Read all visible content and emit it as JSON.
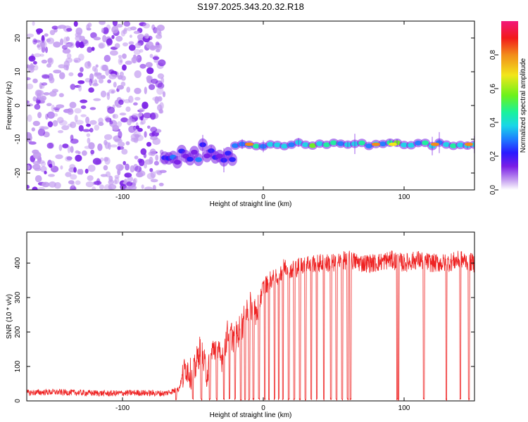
{
  "figure_title": "S197.2025.343.20.32.R18",
  "colors": {
    "snr_line": "#ee2222",
    "axis": "#000000"
  },
  "chart_data": [
    {
      "type": "heatmap",
      "title": "S197.2025.343.20.32.R18",
      "xlabel": "Height of straight line (km)",
      "ylabel": "Frequency (Hz)",
      "xlim": [
        -168,
        150
      ],
      "ylim": [
        -25,
        25
      ],
      "x_ticks": [
        -100,
        0,
        100
      ],
      "x_tick_labels": [
        "-100",
        "0",
        "100"
      ],
      "y_ticks": [
        -20,
        -10,
        0,
        10,
        20
      ],
      "y_tick_labels": [
        "-20",
        "-10",
        "0",
        "10",
        "20"
      ],
      "colorbar": {
        "label": "Normalized spectral amplitude",
        "range": [
          0,
          1
        ],
        "ticks": [
          0,
          0.2,
          0.4,
          0.6,
          0.8
        ],
        "tick_labels": [
          "0.0",
          "0.2",
          "0.4",
          "0.6",
          "0.8"
        ],
        "colormap": [
          "#ffffff",
          "#c39cf0",
          "#7a1ee6",
          "#2a1aff",
          "#1d7dff",
          "#19d6e8",
          "#19f29c",
          "#6df21a",
          "#f2e61a",
          "#f28c1a",
          "#f21a1a",
          "#f2187a"
        ]
      },
      "regions": [
        {
          "name": "noise",
          "x_range": [
            -168,
            -70
          ],
          "f_range": [
            -25,
            25
          ],
          "amplitude": 0.1
        },
        {
          "name": "signal-onset",
          "x_range": [
            -70,
            -20
          ],
          "f_center": -14,
          "amplitude": 0.3
        },
        {
          "name": "signal",
          "x_range": [
            -20,
            150
          ],
          "f_center": -11.5,
          "amplitude": 0.55
        }
      ],
      "hot_spots": [
        {
          "x": -10,
          "f": -11.5,
          "amplitude": 0.8
        },
        {
          "x": 80,
          "f": -11.5,
          "amplitude": 0.8
        },
        {
          "x": 92,
          "f": -11.5,
          "amplitude": 0.75
        },
        {
          "x": 122,
          "f": -11.5,
          "amplitude": 0.8
        },
        {
          "x": 146,
          "f": -11.5,
          "amplitude": 0.8
        }
      ]
    },
    {
      "type": "line",
      "title": "",
      "xlabel": "Height of straight line (km)",
      "ylabel": "SNR (10 * v/v)",
      "xlim": [
        -168,
        150
      ],
      "ylim": [
        0,
        490
      ],
      "x_ticks": [
        -100,
        0,
        100
      ],
      "x_tick_labels": [
        "-100",
        "0",
        "100"
      ],
      "y_ticks": [
        0,
        100,
        200,
        300,
        400
      ],
      "y_tick_labels": [
        "0",
        "100",
        "200",
        "300",
        "400"
      ],
      "series": [
        {
          "name": "SNR",
          "x": [
            -168,
            -150,
            -130,
            -110,
            -90,
            -70,
            -60,
            -55,
            -50,
            -45,
            -40,
            -35,
            -30,
            -25,
            -20,
            -15,
            -10,
            -5,
            0,
            5,
            10,
            15,
            20,
            25,
            30,
            40,
            50,
            60,
            70,
            80,
            90,
            100,
            110,
            120,
            130,
            140,
            150
          ],
          "y": [
            20,
            22,
            20,
            18,
            20,
            18,
            30,
            100,
            70,
            150,
            80,
            160,
            120,
            200,
            180,
            220,
            280,
            250,
            330,
            350,
            360,
            390,
            380,
            390,
            400,
            400,
            400,
            410,
            400,
            400,
            410,
            400,
            410,
            400,
            400,
            410,
            400
          ]
        }
      ],
      "dropouts_x": [
        -62,
        -50,
        -44,
        -38,
        -33,
        -28,
        -24,
        -20,
        -16,
        -13,
        -10,
        -7,
        -3,
        1,
        4,
        8,
        11,
        14,
        18,
        22,
        26,
        30,
        34,
        38,
        43,
        48,
        52,
        56,
        60,
        62,
        95,
        96,
        114,
        130,
        140,
        146
      ]
    }
  ]
}
